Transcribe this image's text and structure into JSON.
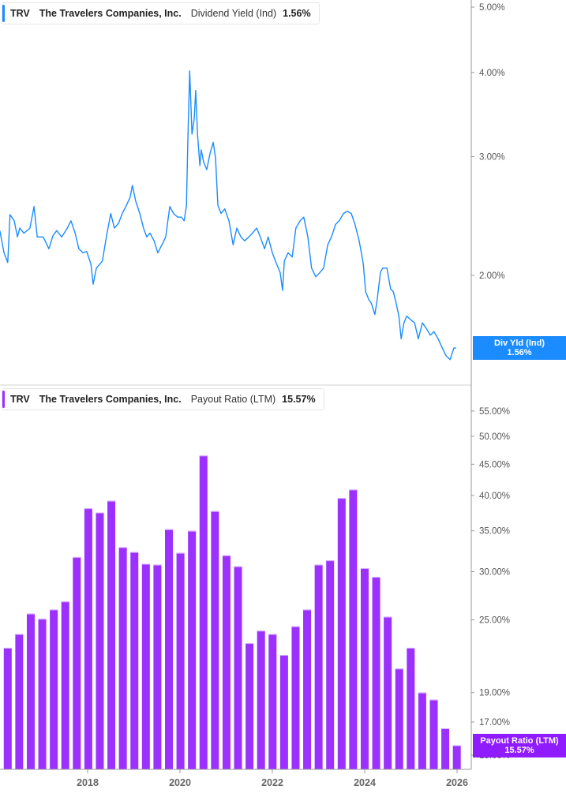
{
  "chart_data": [
    {
      "type": "line",
      "ticker": "TRV",
      "company": "The Travelers Companies, Inc.",
      "metric": "Dividend Yield (Ind)",
      "last_value": "1.56%",
      "last_label": "Div Yld (Ind)",
      "color": "#1a8cff",
      "y_scale": "log",
      "ylim": [
        1.37,
        5.12
      ],
      "y_ticks": [
        "5.00%",
        "4.00%",
        "3.00%",
        "2.00%"
      ],
      "y_tick_values": [
        5,
        4,
        3,
        2
      ],
      "x_ticks": [
        "2018",
        "2020",
        "2022",
        "2024",
        "2026"
      ],
      "grid": false,
      "series": [
        {
          "x": [
            2016.1,
            2016.19,
            2016.27,
            2016.32,
            2016.41,
            2016.48,
            2016.53,
            2016.62,
            2016.75,
            2016.84,
            2016.91,
            2017.04,
            2017.16,
            2017.25,
            2017.33,
            2017.44,
            2017.56,
            2017.64,
            2017.73,
            2017.81,
            2017.9,
            2017.98,
            2018.07,
            2018.12,
            2018.19,
            2018.32,
            2018.41,
            2018.5,
            2018.58,
            2018.67,
            2018.75,
            2018.84,
            2018.92,
            2018.97,
            2019.04,
            2019.13,
            2019.21,
            2019.28,
            2019.35,
            2019.44,
            2019.52,
            2019.61,
            2019.69,
            2019.78,
            2019.86,
            2019.95,
            2020.03,
            2020.09,
            2020.14,
            2020.17,
            2020.21,
            2020.26,
            2020.31,
            2020.34,
            2020.38,
            2020.43,
            2020.46,
            2020.51,
            2020.58,
            2020.65,
            2020.72,
            2020.77,
            2020.82,
            2020.89,
            2020.97,
            2021.06,
            2021.15,
            2021.23,
            2021.32,
            2021.4,
            2021.49,
            2021.57,
            2021.66,
            2021.74,
            2021.83,
            2021.91,
            2022.0,
            2022.09,
            2022.17,
            2022.22,
            2022.26,
            2022.34,
            2022.43,
            2022.51,
            2022.6,
            2022.68,
            2022.77,
            2022.85,
            2022.94,
            2023.03,
            2023.11,
            2023.2,
            2023.28,
            2023.37,
            2023.45,
            2023.54,
            2023.62,
            2023.71,
            2023.79,
            2023.88,
            2023.97,
            2024.02,
            2024.09,
            2024.14,
            2024.22,
            2024.27,
            2024.34,
            2024.39,
            2024.48,
            2024.56,
            2024.62,
            2024.68,
            2024.74,
            2024.79,
            2024.85,
            2024.91,
            2024.99,
            2025.08,
            2025.16,
            2025.25,
            2025.33,
            2025.42,
            2025.5,
            2025.59,
            2025.68,
            2025.76,
            2025.85,
            2025.93,
            2025.98
          ],
          "y": [
            2.33,
            2.16,
            2.09,
            2.46,
            2.41,
            2.28,
            2.35,
            2.31,
            2.35,
            2.53,
            2.28,
            2.28,
            2.19,
            2.29,
            2.33,
            2.28,
            2.35,
            2.41,
            2.31,
            2.19,
            2.16,
            2.17,
            2.08,
            1.94,
            2.05,
            2.1,
            2.29,
            2.47,
            2.35,
            2.39,
            2.47,
            2.54,
            2.61,
            2.72,
            2.58,
            2.47,
            2.35,
            2.28,
            2.31,
            2.25,
            2.16,
            2.22,
            2.28,
            2.53,
            2.47,
            2.44,
            2.44,
            2.41,
            2.54,
            3.15,
            4.02,
            3.24,
            3.42,
            3.76,
            3.24,
            2.91,
            3.07,
            2.95,
            2.87,
            3.03,
            3.15,
            2.99,
            2.54,
            2.47,
            2.51,
            2.41,
            2.22,
            2.35,
            2.28,
            2.25,
            2.28,
            2.31,
            2.35,
            2.28,
            2.19,
            2.28,
            2.16,
            2.08,
            2.02,
            1.9,
            2.1,
            2.16,
            2.13,
            2.35,
            2.41,
            2.44,
            2.28,
            2.05,
            1.99,
            2.02,
            2.05,
            2.22,
            2.28,
            2.38,
            2.41,
            2.47,
            2.49,
            2.47,
            2.38,
            2.25,
            2.08,
            1.89,
            1.84,
            1.82,
            1.75,
            1.84,
            2.02,
            2.05,
            2.05,
            1.91,
            1.89,
            1.82,
            1.74,
            1.61,
            1.7,
            1.74,
            1.72,
            1.7,
            1.61,
            1.7,
            1.67,
            1.63,
            1.65,
            1.61,
            1.56,
            1.52,
            1.5,
            1.56,
            1.56
          ]
        }
      ]
    },
    {
      "type": "bar",
      "ticker": "TRV",
      "company": "The Travelers Companies, Inc.",
      "metric": "Payout Ratio (LTM)",
      "last_value": "15.57%",
      "last_label": "Payout Ratio (LTM)",
      "color": "#9b30ff",
      "y_scale": "log",
      "ylim": [
        14.2,
        60.3
      ],
      "y_ticks": [
        "55.00%",
        "50.00%",
        "45.00%",
        "40.00%",
        "35.00%",
        "30.00%",
        "25.00%",
        "19.00%",
        "17.00%",
        "15.00%"
      ],
      "y_tick_values": [
        55,
        50,
        45,
        40,
        35,
        30,
        25,
        19,
        17,
        15
      ],
      "x_ticks": [
        "2018",
        "2020",
        "2022",
        "2024",
        "2026"
      ],
      "grid": false,
      "categories": [
        "2016 Q2",
        "2016 Q3",
        "2016 Q4",
        "2017 Q1",
        "2017 Q2",
        "2017 Q3",
        "2017 Q4",
        "2018 Q1",
        "2018 Q2",
        "2018 Q3",
        "2018 Q4",
        "2019 Q1",
        "2019 Q2",
        "2019 Q3",
        "2019 Q4",
        "2020 Q1",
        "2020 Q2",
        "2020 Q3",
        "2020 Q4",
        "2021 Q1",
        "2021 Q2",
        "2021 Q3",
        "2021 Q4",
        "2022 Q1",
        "2022 Q2",
        "2022 Q3",
        "2022 Q4",
        "2023 Q1",
        "2023 Q2",
        "2023 Q3",
        "2023 Q4",
        "2024 Q1",
        "2024 Q2",
        "2024 Q3",
        "2024 Q4",
        "2025 Q1",
        "2025 Q2",
        "2025 Q3",
        "2025 Q4",
        "2026 Q1"
      ],
      "values": [
        22.5,
        23.7,
        25.6,
        25.1,
        26.0,
        26.8,
        31.7,
        38.1,
        37.5,
        39.2,
        32.9,
        32.3,
        30.9,
        30.8,
        35.2,
        32.2,
        35.0,
        46.5,
        37.7,
        31.9,
        30.6,
        22.9,
        24.0,
        23.7,
        21.9,
        24.4,
        26.0,
        30.8,
        31.3,
        39.6,
        40.9,
        30.4,
        29.4,
        25.3,
        20.8,
        22.5,
        19.0,
        18.5,
        16.6,
        15.57
      ]
    }
  ]
}
